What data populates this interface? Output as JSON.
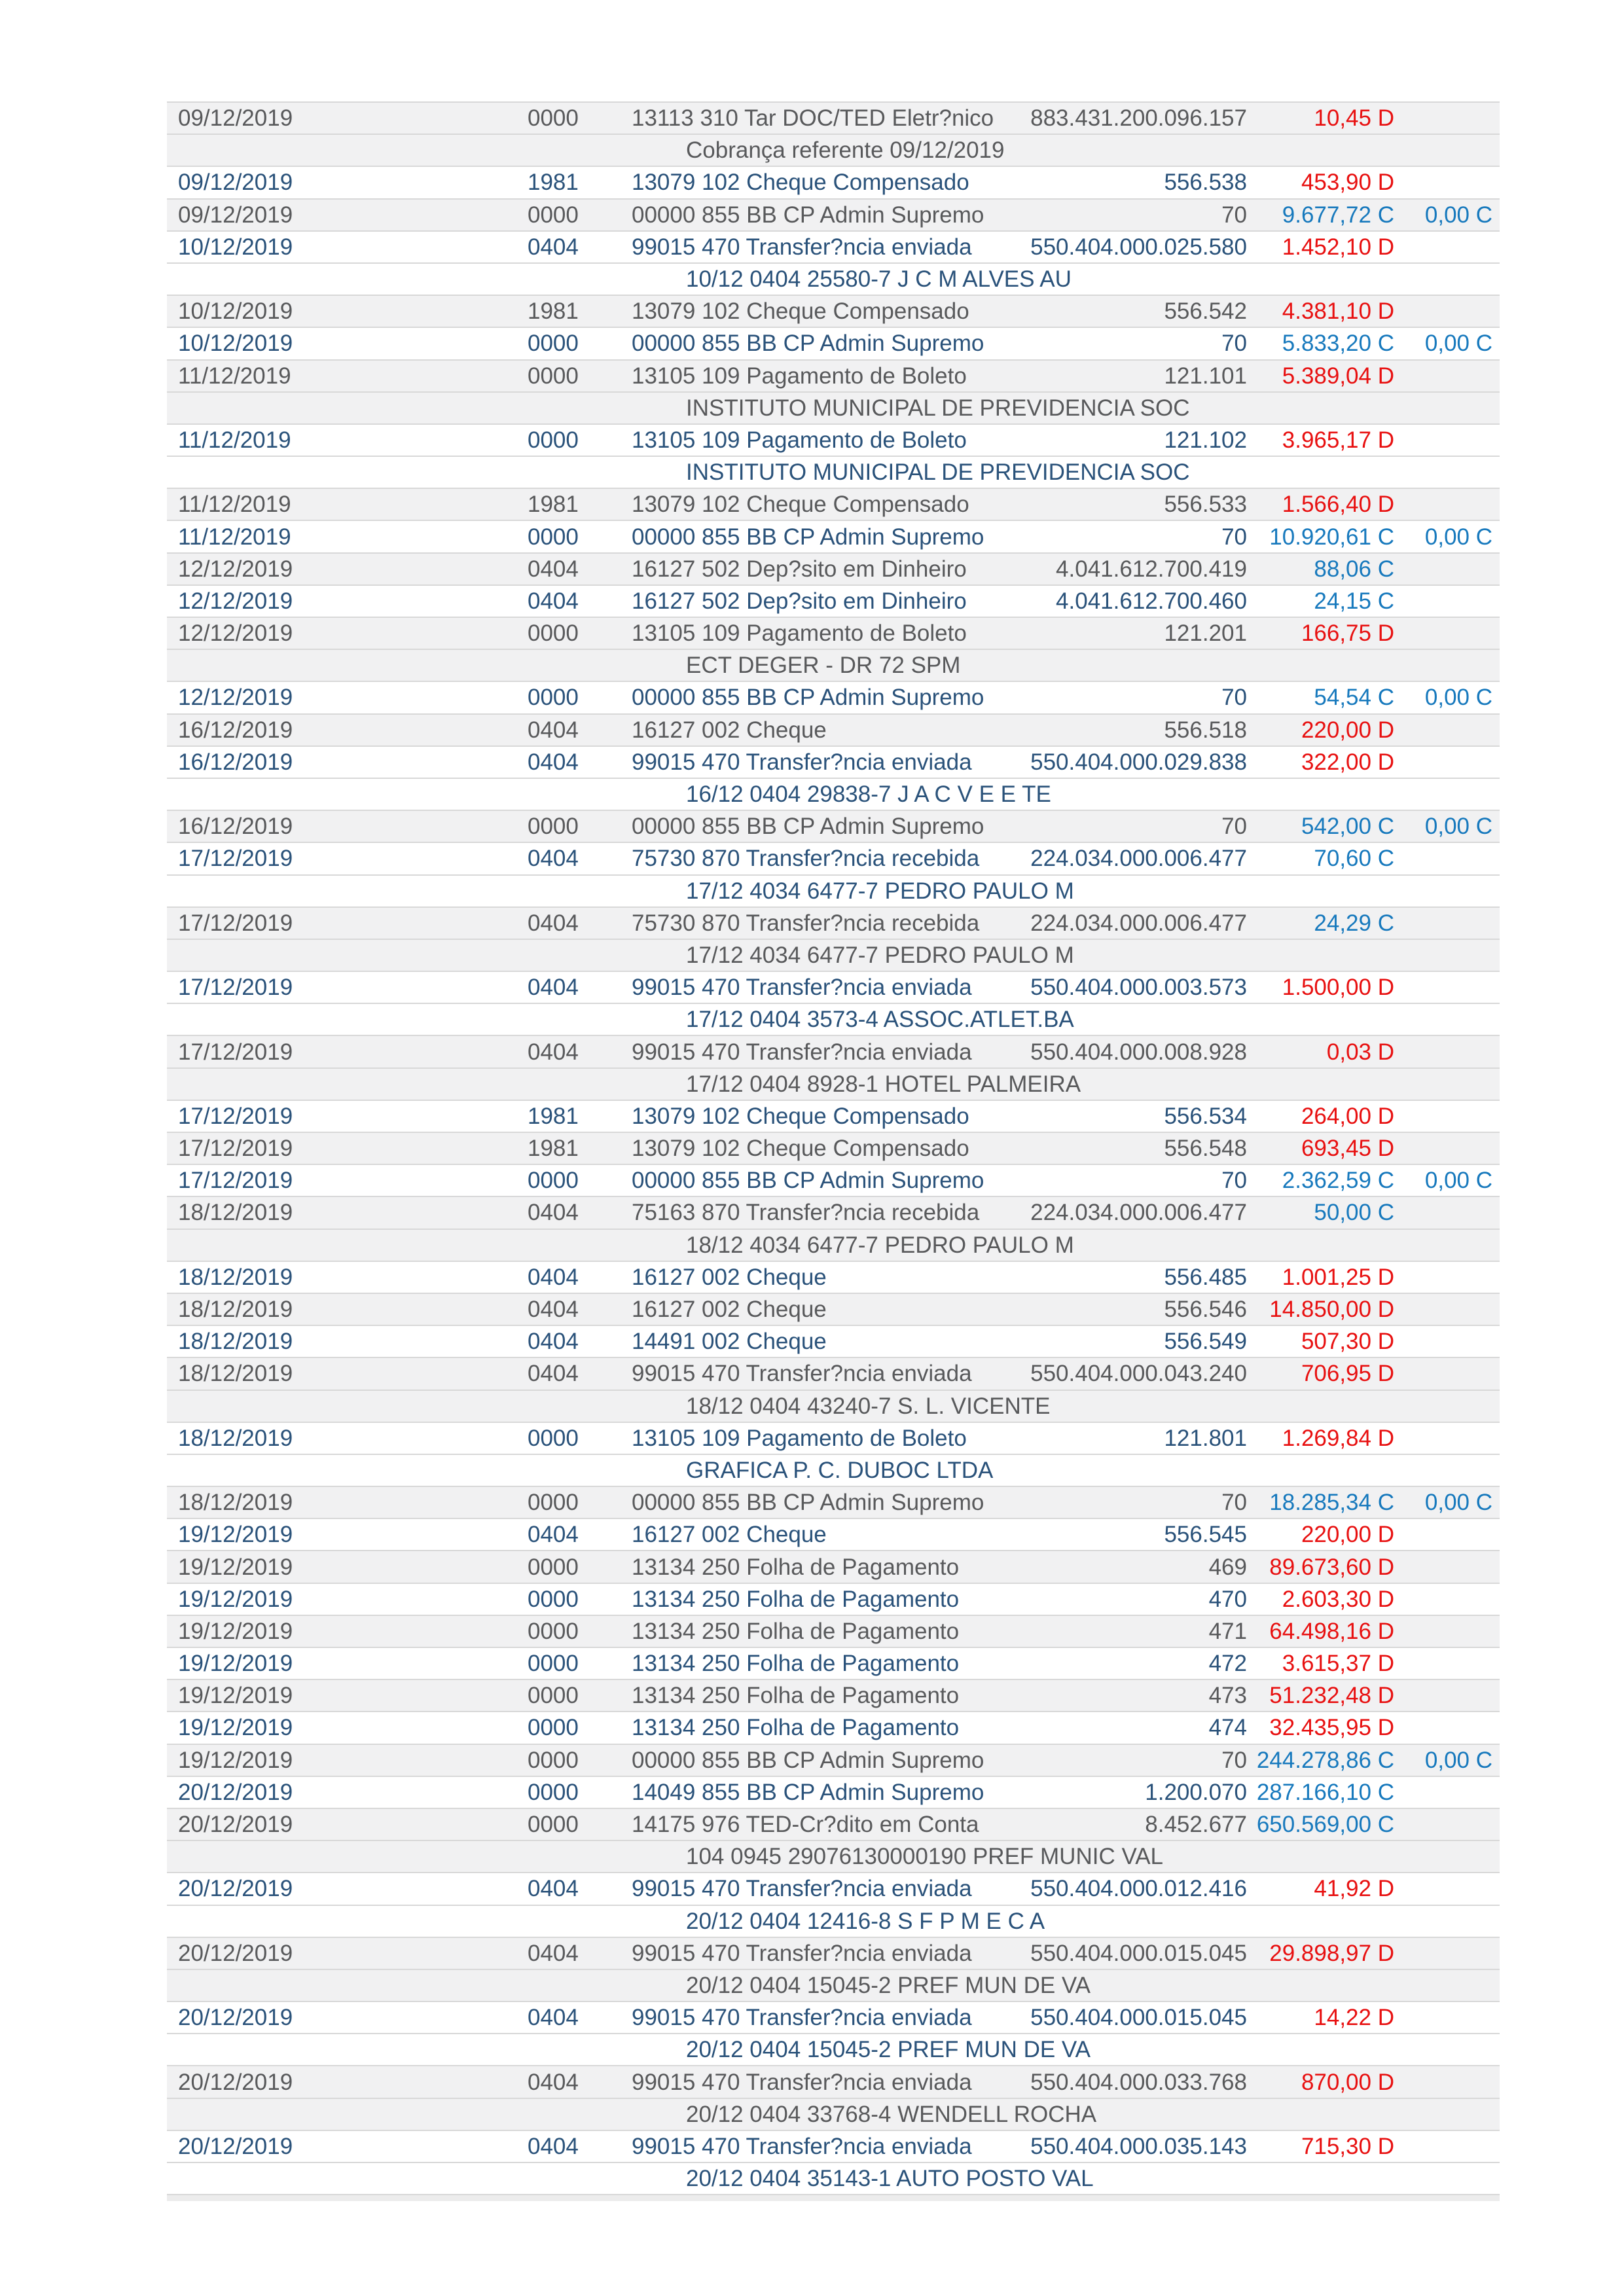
{
  "colors": {
    "debit_red": "#e81010",
    "credit_blue": "#1779bd",
    "navy_text": "#2a527a",
    "gray_text": "#58595b",
    "row_shade": "#f1f1f2",
    "separator": "#d8d8d8",
    "bottom_band": "#ececec"
  },
  "table": {
    "rows": [
      {
        "kind": "txn",
        "shade": "g",
        "date": "09/12/2019",
        "agency": "0000",
        "description": "13113 310 Tar DOC/TED Eletr?nico",
        "document": "883.431.200.096.157",
        "value": "10,45 D",
        "balance": ""
      },
      {
        "kind": "detail",
        "shade": "g",
        "text": "Cobrança referente 09/12/2019"
      },
      {
        "kind": "txn",
        "shade": "w",
        "date": "09/12/2019",
        "agency": "1981",
        "description": "13079 102 Cheque Compensado",
        "document": "556.538",
        "value": "453,90 D",
        "balance": ""
      },
      {
        "kind": "txn",
        "shade": "g",
        "date": "09/12/2019",
        "agency": "0000",
        "description": "00000 855 BB CP Admin Supremo",
        "document": "70",
        "value": "9.677,72 C",
        "balance": "0,00 C"
      },
      {
        "kind": "txn",
        "shade": "w",
        "date": "10/12/2019",
        "agency": "0404",
        "description": "99015 470 Transfer?ncia enviada",
        "document": "550.404.000.025.580",
        "value": "1.452,10 D",
        "balance": ""
      },
      {
        "kind": "detail",
        "shade": "w",
        "text": "10/12 0404 25580-7 J C M ALVES AU"
      },
      {
        "kind": "txn",
        "shade": "g",
        "date": "10/12/2019",
        "agency": "1981",
        "description": "13079 102 Cheque Compensado",
        "document": "556.542",
        "value": "4.381,10 D",
        "balance": ""
      },
      {
        "kind": "txn",
        "shade": "w",
        "date": "10/12/2019",
        "agency": "0000",
        "description": "00000 855 BB CP Admin Supremo",
        "document": "70",
        "value": "5.833,20 C",
        "balance": "0,00 C"
      },
      {
        "kind": "txn",
        "shade": "g",
        "date": "11/12/2019",
        "agency": "0000",
        "description": "13105 109 Pagamento de Boleto",
        "document": "121.101",
        "value": "5.389,04 D",
        "balance": ""
      },
      {
        "kind": "detail",
        "shade": "g",
        "text": "INSTITUTO MUNICIPAL DE PREVIDENCIA SOC"
      },
      {
        "kind": "txn",
        "shade": "w",
        "date": "11/12/2019",
        "agency": "0000",
        "description": "13105 109 Pagamento de Boleto",
        "document": "121.102",
        "value": "3.965,17 D",
        "balance": ""
      },
      {
        "kind": "detail",
        "shade": "w",
        "text": "INSTITUTO MUNICIPAL DE PREVIDENCIA SOC"
      },
      {
        "kind": "txn",
        "shade": "g",
        "date": "11/12/2019",
        "agency": "1981",
        "description": "13079 102 Cheque Compensado",
        "document": "556.533",
        "value": "1.566,40 D",
        "balance": ""
      },
      {
        "kind": "txn",
        "shade": "w",
        "date": "11/12/2019",
        "agency": "0000",
        "description": "00000 855 BB CP Admin Supremo",
        "document": "70",
        "value": "10.920,61 C",
        "balance": "0,00 C"
      },
      {
        "kind": "txn",
        "shade": "g",
        "date": "12/12/2019",
        "agency": "0404",
        "description": "16127 502 Dep?sito em Dinheiro",
        "document": "4.041.612.700.419",
        "value": "88,06 C",
        "balance": ""
      },
      {
        "kind": "txn",
        "shade": "w",
        "date": "12/12/2019",
        "agency": "0404",
        "description": "16127 502 Dep?sito em Dinheiro",
        "document": "4.041.612.700.460",
        "value": "24,15 C",
        "balance": ""
      },
      {
        "kind": "txn",
        "shade": "g",
        "date": "12/12/2019",
        "agency": "0000",
        "description": "13105 109 Pagamento de Boleto",
        "document": "121.201",
        "value": "166,75 D",
        "balance": ""
      },
      {
        "kind": "detail",
        "shade": "g",
        "text": "ECT DEGER - DR 72 SPM"
      },
      {
        "kind": "txn",
        "shade": "w",
        "date": "12/12/2019",
        "agency": "0000",
        "description": "00000 855 BB CP Admin Supremo",
        "document": "70",
        "value": "54,54 C",
        "balance": "0,00 C"
      },
      {
        "kind": "txn",
        "shade": "g",
        "date": "16/12/2019",
        "agency": "0404",
        "description": "16127 002 Cheque",
        "document": "556.518",
        "value": "220,00 D",
        "balance": ""
      },
      {
        "kind": "txn",
        "shade": "w",
        "date": "16/12/2019",
        "agency": "0404",
        "description": "99015 470 Transfer?ncia enviada",
        "document": "550.404.000.029.838",
        "value": "322,00 D",
        "balance": ""
      },
      {
        "kind": "detail",
        "shade": "w",
        "text": "16/12 0404 29838-7 J A C V E E TE"
      },
      {
        "kind": "txn",
        "shade": "g",
        "date": "16/12/2019",
        "agency": "0000",
        "description": "00000 855 BB CP Admin Supremo",
        "document": "70",
        "value": "542,00 C",
        "balance": "0,00 C"
      },
      {
        "kind": "txn",
        "shade": "w",
        "date": "17/12/2019",
        "agency": "0404",
        "description": "75730 870 Transfer?ncia recebida",
        "document": "224.034.000.006.477",
        "value": "70,60 C",
        "balance": ""
      },
      {
        "kind": "detail",
        "shade": "w",
        "text": "17/12 4034 6477-7 PEDRO PAULO M"
      },
      {
        "kind": "txn",
        "shade": "g",
        "date": "17/12/2019",
        "agency": "0404",
        "description": "75730 870 Transfer?ncia recebida",
        "document": "224.034.000.006.477",
        "value": "24,29 C",
        "balance": ""
      },
      {
        "kind": "detail",
        "shade": "g",
        "text": "17/12 4034 6477-7 PEDRO PAULO M"
      },
      {
        "kind": "txn",
        "shade": "w",
        "date": "17/12/2019",
        "agency": "0404",
        "description": "99015 470 Transfer?ncia enviada",
        "document": "550.404.000.003.573",
        "value": "1.500,00 D",
        "balance": ""
      },
      {
        "kind": "detail",
        "shade": "w",
        "text": "17/12 0404 3573-4 ASSOC.ATLET.BA"
      },
      {
        "kind": "txn",
        "shade": "g",
        "date": "17/12/2019",
        "agency": "0404",
        "description": "99015 470 Transfer?ncia enviada",
        "document": "550.404.000.008.928",
        "value": "0,03 D",
        "balance": ""
      },
      {
        "kind": "detail",
        "shade": "g",
        "text": "17/12 0404 8928-1 HOTEL PALMEIRA"
      },
      {
        "kind": "txn",
        "shade": "w",
        "date": "17/12/2019",
        "agency": "1981",
        "description": "13079 102 Cheque Compensado",
        "document": "556.534",
        "value": "264,00 D",
        "balance": ""
      },
      {
        "kind": "txn",
        "shade": "g",
        "date": "17/12/2019",
        "agency": "1981",
        "description": "13079 102 Cheque Compensado",
        "document": "556.548",
        "value": "693,45 D",
        "balance": ""
      },
      {
        "kind": "txn",
        "shade": "w",
        "date": "17/12/2019",
        "agency": "0000",
        "description": "00000 855 BB CP Admin Supremo",
        "document": "70",
        "value": "2.362,59 C",
        "balance": "0,00 C"
      },
      {
        "kind": "txn",
        "shade": "g",
        "date": "18/12/2019",
        "agency": "0404",
        "description": "75163 870 Transfer?ncia recebida",
        "document": "224.034.000.006.477",
        "value": "50,00 C",
        "balance": ""
      },
      {
        "kind": "detail",
        "shade": "g",
        "text": "18/12 4034 6477-7 PEDRO PAULO M"
      },
      {
        "kind": "txn",
        "shade": "w",
        "date": "18/12/2019",
        "agency": "0404",
        "description": "16127 002 Cheque",
        "document": "556.485",
        "value": "1.001,25 D",
        "balance": ""
      },
      {
        "kind": "txn",
        "shade": "g",
        "date": "18/12/2019",
        "agency": "0404",
        "description": "16127 002 Cheque",
        "document": "556.546",
        "value": "14.850,00 D",
        "balance": ""
      },
      {
        "kind": "txn",
        "shade": "w",
        "date": "18/12/2019",
        "agency": "0404",
        "description": "14491 002 Cheque",
        "document": "556.549",
        "value": "507,30 D",
        "balance": ""
      },
      {
        "kind": "txn",
        "shade": "g",
        "date": "18/12/2019",
        "agency": "0404",
        "description": "99015 470 Transfer?ncia enviada",
        "document": "550.404.000.043.240",
        "value": "706,95 D",
        "balance": ""
      },
      {
        "kind": "detail",
        "shade": "g",
        "text": "18/12 0404 43240-7 S. L. VICENTE"
      },
      {
        "kind": "txn",
        "shade": "w",
        "date": "18/12/2019",
        "agency": "0000",
        "description": "13105 109 Pagamento de Boleto",
        "document": "121.801",
        "value": "1.269,84 D",
        "balance": ""
      },
      {
        "kind": "detail",
        "shade": "w",
        "text": "GRAFICA P. C. DUBOC LTDA"
      },
      {
        "kind": "txn",
        "shade": "g",
        "date": "18/12/2019",
        "agency": "0000",
        "description": "00000 855 BB CP Admin Supremo",
        "document": "70",
        "value": "18.285,34 C",
        "balance": "0,00 C"
      },
      {
        "kind": "txn",
        "shade": "w",
        "date": "19/12/2019",
        "agency": "0404",
        "description": "16127 002 Cheque",
        "document": "556.545",
        "value": "220,00 D",
        "balance": ""
      },
      {
        "kind": "txn",
        "shade": "g",
        "date": "19/12/2019",
        "agency": "0000",
        "description": "13134 250 Folha de Pagamento",
        "document": "469",
        "value": "89.673,60 D",
        "balance": ""
      },
      {
        "kind": "txn",
        "shade": "w",
        "date": "19/12/2019",
        "agency": "0000",
        "description": "13134 250 Folha de Pagamento",
        "document": "470",
        "value": "2.603,30 D",
        "balance": ""
      },
      {
        "kind": "txn",
        "shade": "g",
        "date": "19/12/2019",
        "agency": "0000",
        "description": "13134 250 Folha de Pagamento",
        "document": "471",
        "value": "64.498,16 D",
        "balance": ""
      },
      {
        "kind": "txn",
        "shade": "w",
        "date": "19/12/2019",
        "agency": "0000",
        "description": "13134 250 Folha de Pagamento",
        "document": "472",
        "value": "3.615,37 D",
        "balance": ""
      },
      {
        "kind": "txn",
        "shade": "g",
        "date": "19/12/2019",
        "agency": "0000",
        "description": "13134 250 Folha de Pagamento",
        "document": "473",
        "value": "51.232,48 D",
        "balance": ""
      },
      {
        "kind": "txn",
        "shade": "w",
        "date": "19/12/2019",
        "agency": "0000",
        "description": "13134 250 Folha de Pagamento",
        "document": "474",
        "value": "32.435,95 D",
        "balance": ""
      },
      {
        "kind": "txn",
        "shade": "g",
        "date": "19/12/2019",
        "agency": "0000",
        "description": "00000 855 BB CP Admin Supremo",
        "document": "70",
        "value": "244.278,86 C",
        "balance": "0,00 C"
      },
      {
        "kind": "txn",
        "shade": "w",
        "date": "20/12/2019",
        "agency": "0000",
        "description": "14049 855 BB CP Admin Supremo",
        "document": "1.200.070",
        "value": "287.166,10 C",
        "balance": ""
      },
      {
        "kind": "txn",
        "shade": "g",
        "date": "20/12/2019",
        "agency": "0000",
        "description": "14175 976 TED-Cr?dito em Conta",
        "document": "8.452.677",
        "value": "650.569,00 C",
        "balance": ""
      },
      {
        "kind": "detail",
        "shade": "g",
        "text": "104 0945 29076130000190 PREF MUNIC VAL"
      },
      {
        "kind": "txn",
        "shade": "w",
        "date": "20/12/2019",
        "agency": "0404",
        "description": "99015 470 Transfer?ncia enviada",
        "document": "550.404.000.012.416",
        "value": "41,92 D",
        "balance": ""
      },
      {
        "kind": "detail",
        "shade": "w",
        "text": "20/12 0404 12416-8 S F P M E C A"
      },
      {
        "kind": "txn",
        "shade": "g",
        "date": "20/12/2019",
        "agency": "0404",
        "description": "99015 470 Transfer?ncia enviada",
        "document": "550.404.000.015.045",
        "value": "29.898,97 D",
        "balance": ""
      },
      {
        "kind": "detail",
        "shade": "g",
        "text": "20/12 0404 15045-2 PREF MUN DE VA"
      },
      {
        "kind": "txn",
        "shade": "w",
        "date": "20/12/2019",
        "agency": "0404",
        "description": "99015 470 Transfer?ncia enviada",
        "document": "550.404.000.015.045",
        "value": "14,22 D",
        "balance": ""
      },
      {
        "kind": "detail",
        "shade": "w",
        "text": "20/12 0404 15045-2 PREF MUN DE VA"
      },
      {
        "kind": "txn",
        "shade": "g",
        "date": "20/12/2019",
        "agency": "0404",
        "description": "99015 470 Transfer?ncia enviada",
        "document": "550.404.000.033.768",
        "value": "870,00 D",
        "balance": ""
      },
      {
        "kind": "detail",
        "shade": "g",
        "text": "20/12 0404 33768-4 WENDELL ROCHA"
      },
      {
        "kind": "txn",
        "shade": "w",
        "date": "20/12/2019",
        "agency": "0404",
        "description": "99015 470 Transfer?ncia enviada",
        "document": "550.404.000.035.143",
        "value": "715,30 D",
        "balance": ""
      },
      {
        "kind": "detail",
        "shade": "w",
        "text": "20/12 0404 35143-1 AUTO POSTO VAL"
      }
    ]
  }
}
